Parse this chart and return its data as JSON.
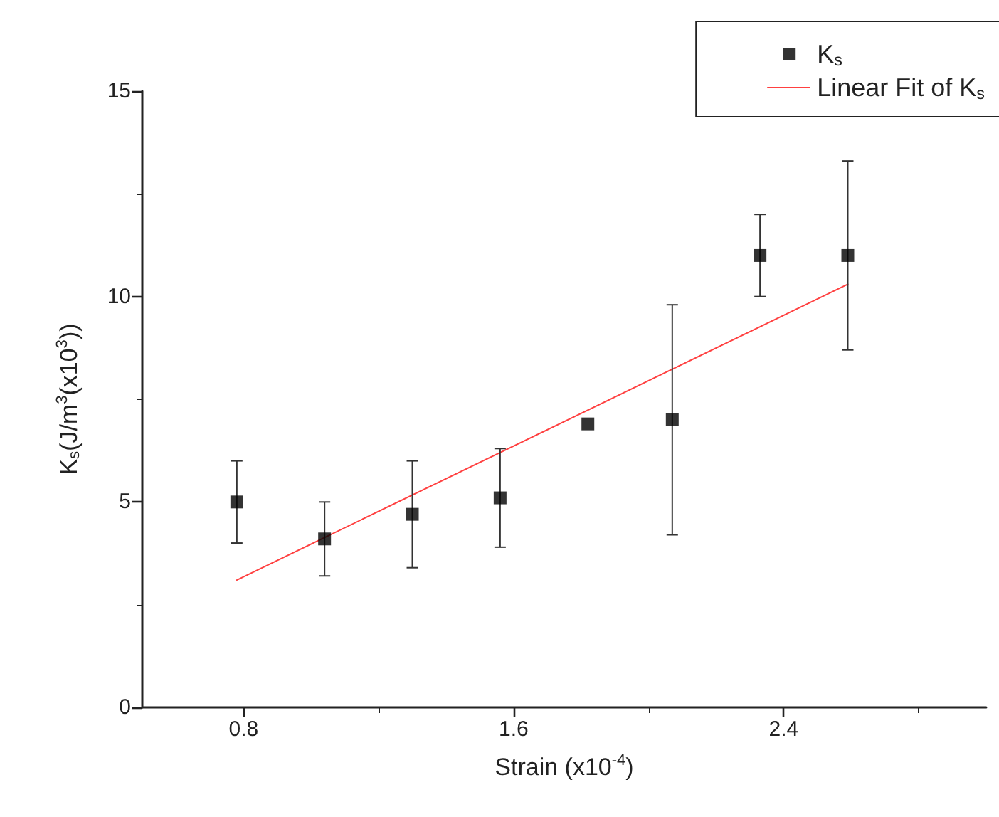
{
  "chart_data": {
    "type": "scatter",
    "xlabel": "Strain (x10$^{-4}$)",
    "ylabel": "K$_{s}$(J/m$^{3}$(x10$^{3}$))",
    "x": [
      0.78,
      1.04,
      1.3,
      1.56,
      1.82,
      2.07,
      2.33,
      2.59
    ],
    "series": [
      {
        "name": "K$_{s}$",
        "color": "#000000",
        "marker": "square",
        "values": [
          5.0,
          4.1,
          4.7,
          5.1,
          6.9,
          7.0,
          11.0,
          11.0
        ],
        "errors": [
          [
            4.0,
            6.0
          ],
          [
            3.2,
            5.0
          ],
          [
            3.4,
            6.0
          ],
          [
            3.9,
            6.3
          ],
          null,
          [
            4.2,
            9.8
          ],
          [
            10.0,
            12.0
          ],
          [
            8.7,
            13.3
          ]
        ]
      },
      {
        "name": "Linear Fit of K$_{s}$",
        "type": "line",
        "color": "#ff4040",
        "marker": "none",
        "line_style": "solid",
        "x": [
          0.78,
          2.59
        ],
        "values": [
          3.1,
          10.3
        ]
      }
    ],
    "xlim": [
      0.5,
      3.0
    ],
    "xticks": [
      0.8,
      1.6,
      2.4
    ],
    "ylim": [
      0,
      15
    ],
    "yticks": [
      0,
      5,
      10,
      15
    ],
    "legend": "top right",
    "grid": false
  }
}
